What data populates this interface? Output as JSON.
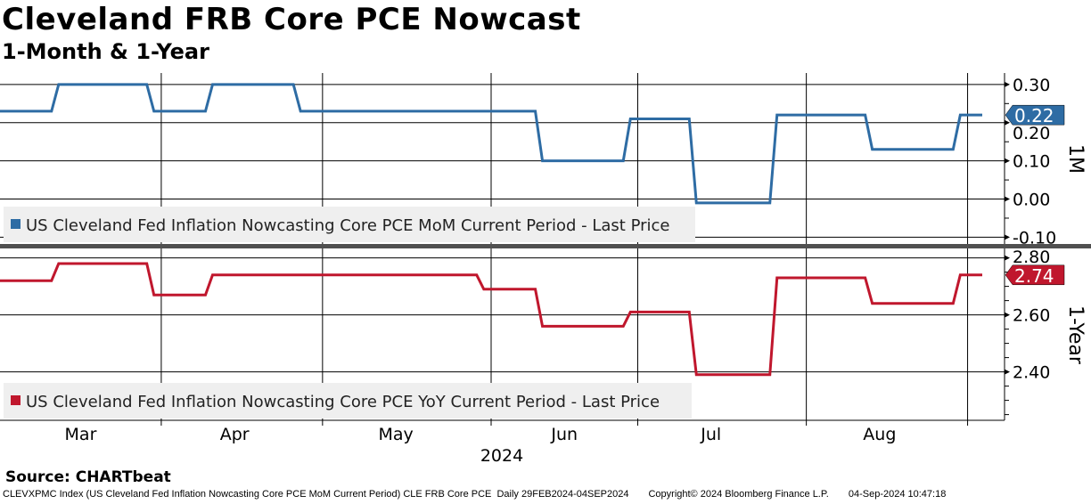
{
  "title": "Cleveland FRB Core PCE Nowcast",
  "subtitle": "1-Month & 1-Year",
  "source": "Source: CHARTbeat",
  "footer": {
    "security": "CLEVXPMC Index (US Cleveland Fed Inflation Nowcasting Core PCE MoM Current Period) CLE FRB Core PCE  Daily 29FEB2024-04SEP2024",
    "copyright": "Copyright© 2024 Bloomberg Finance L.P.",
    "timestamp": "04-Sep-2024 10:47:18"
  },
  "chart_data": [
    {
      "type": "line",
      "name": "1M",
      "axis_label": "1M",
      "legend": "US Cleveland Fed Inflation Nowcasting Core PCE MoM Current Period - Last Price",
      "color": "#2e6ca4",
      "ylim": [
        -0.12,
        0.33
      ],
      "yticks": [
        "0.30",
        "0.20",
        "0.10",
        "0.00",
        "-0.10"
      ],
      "ytick_values": [
        0.3,
        0.2,
        0.1,
        0.0,
        -0.1
      ],
      "last_value": "0.22",
      "steps": [
        [
          "2024-02-29",
          0.23
        ],
        [
          "2024-03-12",
          0.3
        ],
        [
          "2024-03-29",
          0.23
        ],
        [
          "2024-04-10",
          0.3
        ],
        [
          "2024-04-26",
          0.23
        ],
        [
          "2024-06-12",
          0.1
        ],
        [
          "2024-06-28",
          0.21
        ],
        [
          "2024-07-11",
          -0.01
        ],
        [
          "2024-07-26",
          0.22
        ],
        [
          "2024-08-14",
          0.13
        ],
        [
          "2024-08-30",
          0.22
        ],
        [
          "2024-09-04",
          0.22
        ]
      ]
    },
    {
      "type": "line",
      "name": "1-Year",
      "axis_label": "1-Year",
      "legend": "US Cleveland Fed Inflation Nowcasting Core PCE YoY Current Period - Last Price",
      "color": "#c0172d",
      "ylim": [
        2.23,
        2.83
      ],
      "yticks": [
        "2.80",
        "2.60",
        "2.40"
      ],
      "ytick_values": [
        2.8,
        2.6,
        2.4
      ],
      "last_value": "2.74",
      "steps": [
        [
          "2024-02-29",
          2.72
        ],
        [
          "2024-03-12",
          2.78
        ],
        [
          "2024-03-29",
          2.67
        ],
        [
          "2024-04-10",
          2.74
        ],
        [
          "2024-05-31",
          2.69
        ],
        [
          "2024-06-12",
          2.56
        ],
        [
          "2024-06-28",
          2.61
        ],
        [
          "2024-07-11",
          2.39
        ],
        [
          "2024-07-26",
          2.73
        ],
        [
          "2024-08-14",
          2.64
        ],
        [
          "2024-08-30",
          2.74
        ],
        [
          "2024-09-04",
          2.74
        ]
      ]
    }
  ],
  "x_axis": {
    "months": [
      "Mar",
      "Apr",
      "May",
      "Jun",
      "Jul",
      "Aug"
    ],
    "month_dates": [
      "2024-03-15",
      "2024-04-15",
      "2024-05-15",
      "2024-06-15",
      "2024-07-15",
      "2024-08-15"
    ],
    "gridline_dates": [
      "2024-04-01",
      "2024-05-01",
      "2024-06-03",
      "2024-07-01",
      "2024-08-01",
      "2024-09-02"
    ],
    "year": "2024",
    "start": "2024-02-29",
    "end": "2024-09-04"
  }
}
